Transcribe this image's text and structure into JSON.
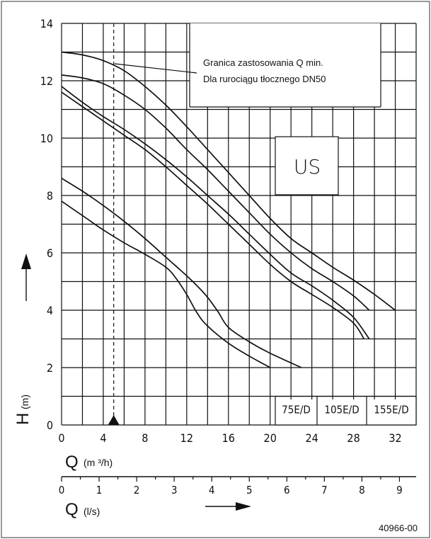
{
  "chart_data": {
    "type": "line",
    "y_axis": {
      "label": "H",
      "unit": "(m)",
      "ylim": [
        0,
        14
      ],
      "ticks": [
        "0",
        "2",
        "4",
        "6",
        "8",
        "10",
        "12",
        "14"
      ]
    },
    "x_axis_primary": {
      "label": "Q",
      "unit": "(m ³/h)",
      "xlim": [
        0,
        34
      ],
      "ticks": [
        "0",
        "4",
        "8",
        "12",
        "16",
        "20",
        "24",
        "28",
        "32"
      ]
    },
    "x_axis_secondary": {
      "label": "Q",
      "unit": "(l/s)",
      "ticks": [
        "0",
        "1",
        "2",
        "3",
        "4",
        "5",
        "6",
        "7",
        "8",
        "9"
      ]
    },
    "grid": true,
    "qmin_x": 5,
    "annotation": {
      "line1": "Granica zastosowania Q min.",
      "line2": "Dla rurociągu tłocznego DN50"
    },
    "region_label": "US",
    "legend_boxes": [
      "75E/D",
      "105E/D",
      "155E/D"
    ],
    "series": [
      {
        "points": [
          [
            0,
            7.8
          ],
          [
            2,
            7.3
          ],
          [
            4,
            6.8
          ],
          [
            6,
            6.35
          ],
          [
            8,
            5.95
          ],
          [
            10,
            5.5
          ],
          [
            11,
            5.1
          ],
          [
            12,
            4.55
          ],
          [
            13,
            3.9
          ],
          [
            14,
            3.45
          ],
          [
            16,
            2.85
          ],
          [
            18,
            2.4
          ],
          [
            20,
            2.0
          ]
        ]
      },
      {
        "points": [
          [
            0,
            8.6
          ],
          [
            2,
            8.15
          ],
          [
            4,
            7.65
          ],
          [
            6,
            7.1
          ],
          [
            8,
            6.5
          ],
          [
            10,
            5.85
          ],
          [
            12,
            5.2
          ],
          [
            13,
            4.85
          ],
          [
            14,
            4.45
          ],
          [
            15,
            3.95
          ],
          [
            16,
            3.4
          ],
          [
            18,
            2.9
          ],
          [
            20,
            2.5
          ],
          [
            23,
            2.0
          ]
        ]
      },
      {
        "points": [
          [
            0,
            11.6
          ],
          [
            2,
            11.1
          ],
          [
            4,
            10.6
          ],
          [
            6,
            10.1
          ],
          [
            8,
            9.6
          ],
          [
            10,
            9.0
          ],
          [
            12,
            8.35
          ],
          [
            14,
            7.7
          ],
          [
            16,
            7.0
          ],
          [
            18,
            6.3
          ],
          [
            20,
            5.6
          ],
          [
            22,
            5.0
          ],
          [
            24,
            4.55
          ],
          [
            26,
            4.1
          ],
          [
            28,
            3.55
          ],
          [
            29,
            3.0
          ]
        ]
      },
      {
        "points": [
          [
            0,
            11.8
          ],
          [
            2,
            11.25
          ],
          [
            4,
            10.75
          ],
          [
            6,
            10.3
          ],
          [
            8,
            9.8
          ],
          [
            10,
            9.25
          ],
          [
            12,
            8.65
          ],
          [
            14,
            8.0
          ],
          [
            16,
            7.35
          ],
          [
            18,
            6.65
          ],
          [
            20,
            5.95
          ],
          [
            22,
            5.3
          ],
          [
            24,
            4.85
          ],
          [
            26,
            4.35
          ],
          [
            28,
            3.75
          ],
          [
            29.5,
            3.0
          ]
        ]
      },
      {
        "points": [
          [
            0,
            12.2
          ],
          [
            2,
            12.1
          ],
          [
            4,
            11.9
          ],
          [
            6,
            11.5
          ],
          [
            8,
            11.0
          ],
          [
            10,
            10.35
          ],
          [
            12,
            9.6
          ],
          [
            14,
            8.9
          ],
          [
            16,
            8.15
          ],
          [
            18,
            7.4
          ],
          [
            20,
            6.65
          ],
          [
            22,
            6.0
          ],
          [
            24,
            5.45
          ],
          [
            26,
            5.0
          ],
          [
            28,
            4.5
          ],
          [
            29.5,
            4.0
          ]
        ]
      },
      {
        "points": [
          [
            0,
            13.0
          ],
          [
            2,
            12.9
          ],
          [
            4,
            12.7
          ],
          [
            6,
            12.35
          ],
          [
            8,
            11.8
          ],
          [
            10,
            11.15
          ],
          [
            12,
            10.4
          ],
          [
            14,
            9.6
          ],
          [
            16,
            8.8
          ],
          [
            18,
            8.0
          ],
          [
            20,
            7.2
          ],
          [
            22,
            6.5
          ],
          [
            24,
            6.0
          ],
          [
            26,
            5.5
          ],
          [
            28,
            5.05
          ],
          [
            30,
            4.55
          ],
          [
            32,
            4.0
          ]
        ]
      }
    ]
  },
  "figure_code": "40966-00"
}
